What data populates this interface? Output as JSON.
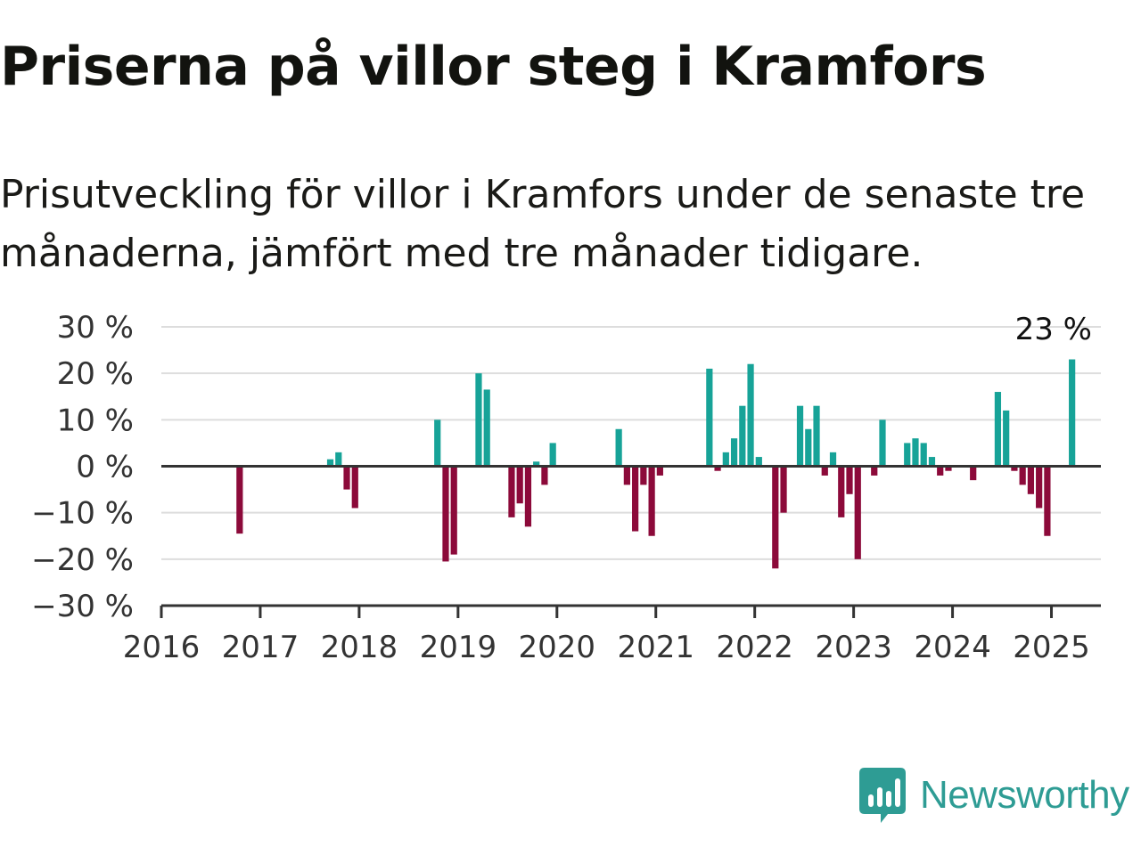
{
  "header": {
    "title": "Priserna på villor steg i Kramfors",
    "subtitle": "Prisutveckling för villor i Kramfors under de senaste tre månaderna, jämfört med tre månader tidigare."
  },
  "brand": {
    "name": "Newsworthy",
    "icon": "newsworthy-logo-icon",
    "color": "#2e9c94"
  },
  "colors": {
    "positive": "#17a398",
    "negative": "#8c0a3a",
    "zero_line": "#333333",
    "grid": "#dddddd"
  },
  "chart_data": {
    "type": "bar",
    "title": "",
    "xlabel": "",
    "ylabel": "",
    "ylim": [
      -30,
      30
    ],
    "xlim": [
      "2016-01",
      "2025-07"
    ],
    "grid": true,
    "y_ticks": [
      30,
      20,
      10,
      0,
      -10,
      -20,
      -30
    ],
    "y_tick_labels": [
      "30 %",
      "20 %",
      "10 %",
      "0 %",
      "−10 %",
      "−20 %",
      "−30 %"
    ],
    "x_ticks": [
      "2016",
      "2017",
      "2018",
      "2019",
      "2020",
      "2021",
      "2022",
      "2023",
      "2024",
      "2025"
    ],
    "annotation": {
      "x": "2025-03",
      "label": "23 %"
    },
    "series": [
      {
        "values": [
          {
            "x": "2016-10",
            "y": -14.5
          },
          {
            "x": "2017-09",
            "y": 1.5
          },
          {
            "x": "2017-10",
            "y": 3
          },
          {
            "x": "2017-11",
            "y": -5
          },
          {
            "x": "2017-12",
            "y": -9
          },
          {
            "x": "2018-10",
            "y": 10
          },
          {
            "x": "2018-11",
            "y": -20.5
          },
          {
            "x": "2018-12",
            "y": -19
          },
          {
            "x": "2019-03",
            "y": 20
          },
          {
            "x": "2019-04",
            "y": 16.5
          },
          {
            "x": "2019-07",
            "y": -11
          },
          {
            "x": "2019-08",
            "y": -8
          },
          {
            "x": "2019-09",
            "y": -13
          },
          {
            "x": "2019-10",
            "y": 1
          },
          {
            "x": "2019-11",
            "y": -4
          },
          {
            "x": "2019-12",
            "y": 5
          },
          {
            "x": "2020-08",
            "y": 8
          },
          {
            "x": "2020-09",
            "y": -4
          },
          {
            "x": "2020-10",
            "y": -14
          },
          {
            "x": "2020-11",
            "y": -4
          },
          {
            "x": "2020-12",
            "y": -15
          },
          {
            "x": "2021-01",
            "y": -2
          },
          {
            "x": "2021-07",
            "y": 21
          },
          {
            "x": "2021-08",
            "y": -1
          },
          {
            "x": "2021-09",
            "y": 3
          },
          {
            "x": "2021-10",
            "y": 6
          },
          {
            "x": "2021-11",
            "y": 13
          },
          {
            "x": "2021-12",
            "y": 22
          },
          {
            "x": "2022-01",
            "y": 2
          },
          {
            "x": "2022-03",
            "y": -22
          },
          {
            "x": "2022-04",
            "y": -10
          },
          {
            "x": "2022-06",
            "y": 13
          },
          {
            "x": "2022-07",
            "y": 8
          },
          {
            "x": "2022-08",
            "y": 13
          },
          {
            "x": "2022-09",
            "y": -2
          },
          {
            "x": "2022-10",
            "y": 3
          },
          {
            "x": "2022-11",
            "y": -11
          },
          {
            "x": "2022-12",
            "y": -6
          },
          {
            "x": "2023-01",
            "y": -20
          },
          {
            "x": "2023-03",
            "y": -2
          },
          {
            "x": "2023-04",
            "y": 10
          },
          {
            "x": "2023-07",
            "y": 5
          },
          {
            "x": "2023-08",
            "y": 6
          },
          {
            "x": "2023-09",
            "y": 5
          },
          {
            "x": "2023-10",
            "y": 2
          },
          {
            "x": "2023-11",
            "y": -2
          },
          {
            "x": "2023-12",
            "y": -1
          },
          {
            "x": "2024-03",
            "y": -3
          },
          {
            "x": "2024-06",
            "y": 16
          },
          {
            "x": "2024-07",
            "y": 12
          },
          {
            "x": "2024-08",
            "y": -1
          },
          {
            "x": "2024-09",
            "y": -4
          },
          {
            "x": "2024-10",
            "y": -6
          },
          {
            "x": "2024-11",
            "y": -9
          },
          {
            "x": "2024-12",
            "y": -15
          },
          {
            "x": "2025-03",
            "y": 23
          }
        ]
      }
    ]
  }
}
